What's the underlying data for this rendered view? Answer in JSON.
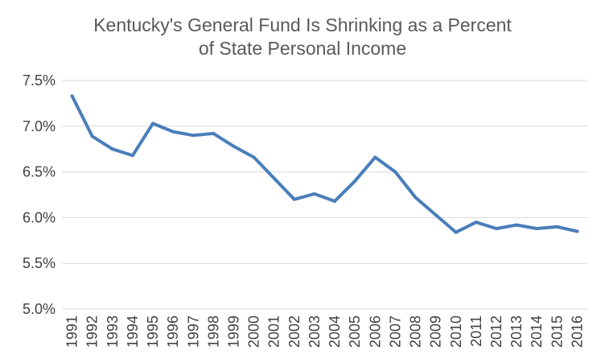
{
  "chart_data": {
    "type": "line",
    "title_line1": "Kentucky's General Fund Is Shrinking as a Percent",
    "title_line2": "of State Personal Income",
    "xlabel": "",
    "ylabel": "",
    "categories": [
      "1991",
      "1992",
      "1993",
      "1994",
      "1995",
      "1996",
      "1997",
      "1998",
      "1999",
      "2000",
      "2001",
      "2002",
      "2003",
      "2004",
      "2005",
      "2006",
      "2007",
      "2008",
      "2009",
      "2010",
      "2011",
      "2012",
      "2013",
      "2014",
      "2015",
      "2016"
    ],
    "series": [
      {
        "values": [
          7.33,
          6.89,
          6.75,
          6.68,
          7.03,
          6.94,
          6.9,
          6.92,
          6.78,
          6.66,
          6.43,
          6.2,
          6.26,
          6.18,
          6.4,
          6.66,
          6.5,
          6.22,
          6.03,
          5.84,
          5.95,
          5.88,
          5.92,
          5.88,
          5.9,
          5.85
        ],
        "color": "#4a7ebb"
      }
    ],
    "ylim": [
      5.0,
      7.5
    ],
    "yticks": [
      {
        "value": 5.0,
        "label": "5.0%"
      },
      {
        "value": 5.5,
        "label": "5.5%"
      },
      {
        "value": 6.0,
        "label": "6.0%"
      },
      {
        "value": 6.5,
        "label": "6.5%"
      },
      {
        "value": 7.0,
        "label": "7.0%"
      },
      {
        "value": 7.5,
        "label": "7.5%"
      }
    ],
    "grid": true,
    "legend": "none"
  }
}
